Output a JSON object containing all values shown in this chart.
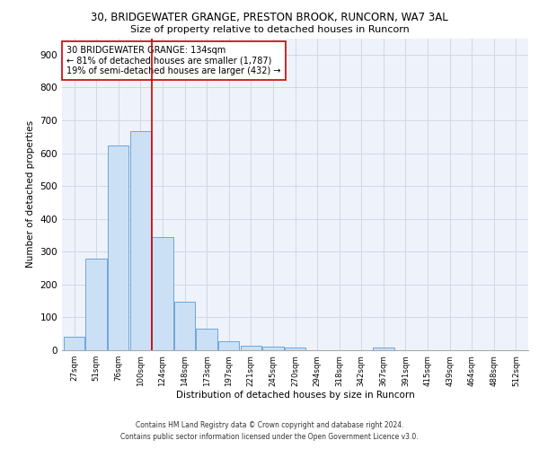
{
  "title": "30, BRIDGEWATER GRANGE, PRESTON BROOK, RUNCORN, WA7 3AL",
  "subtitle": "Size of property relative to detached houses in Runcorn",
  "xlabel": "Distribution of detached houses by size in Runcorn",
  "ylabel": "Number of detached properties",
  "bar_color": "#cce0f5",
  "bar_edge_color": "#5b9bd5",
  "categories": [
    "27sqm",
    "51sqm",
    "76sqm",
    "100sqm",
    "124sqm",
    "148sqm",
    "173sqm",
    "197sqm",
    "221sqm",
    "245sqm",
    "270sqm",
    "294sqm",
    "318sqm",
    "342sqm",
    "367sqm",
    "391sqm",
    "415sqm",
    "439sqm",
    "464sqm",
    "488sqm",
    "512sqm"
  ],
  "values": [
    42,
    278,
    622,
    668,
    345,
    147,
    65,
    28,
    13,
    10,
    8,
    0,
    0,
    0,
    7,
    0,
    0,
    0,
    0,
    0,
    0
  ],
  "ylim": [
    0,
    950
  ],
  "yticks": [
    0,
    100,
    200,
    300,
    400,
    500,
    600,
    700,
    800,
    900
  ],
  "property_line_index": 4,
  "property_line_color": "#cc0000",
  "annotation_text": "30 BRIDGEWATER GRANGE: 134sqm\n← 81% of detached houses are smaller (1,787)\n19% of semi-detached houses are larger (432) →",
  "annotation_box_color": "#ffffff",
  "annotation_box_edge": "#cc0000",
  "footer_line1": "Contains HM Land Registry data © Crown copyright and database right 2024.",
  "footer_line2": "Contains public sector information licensed under the Open Government Licence v3.0.",
  "grid_color": "#d0d8e8",
  "background_color": "#eef2fa"
}
